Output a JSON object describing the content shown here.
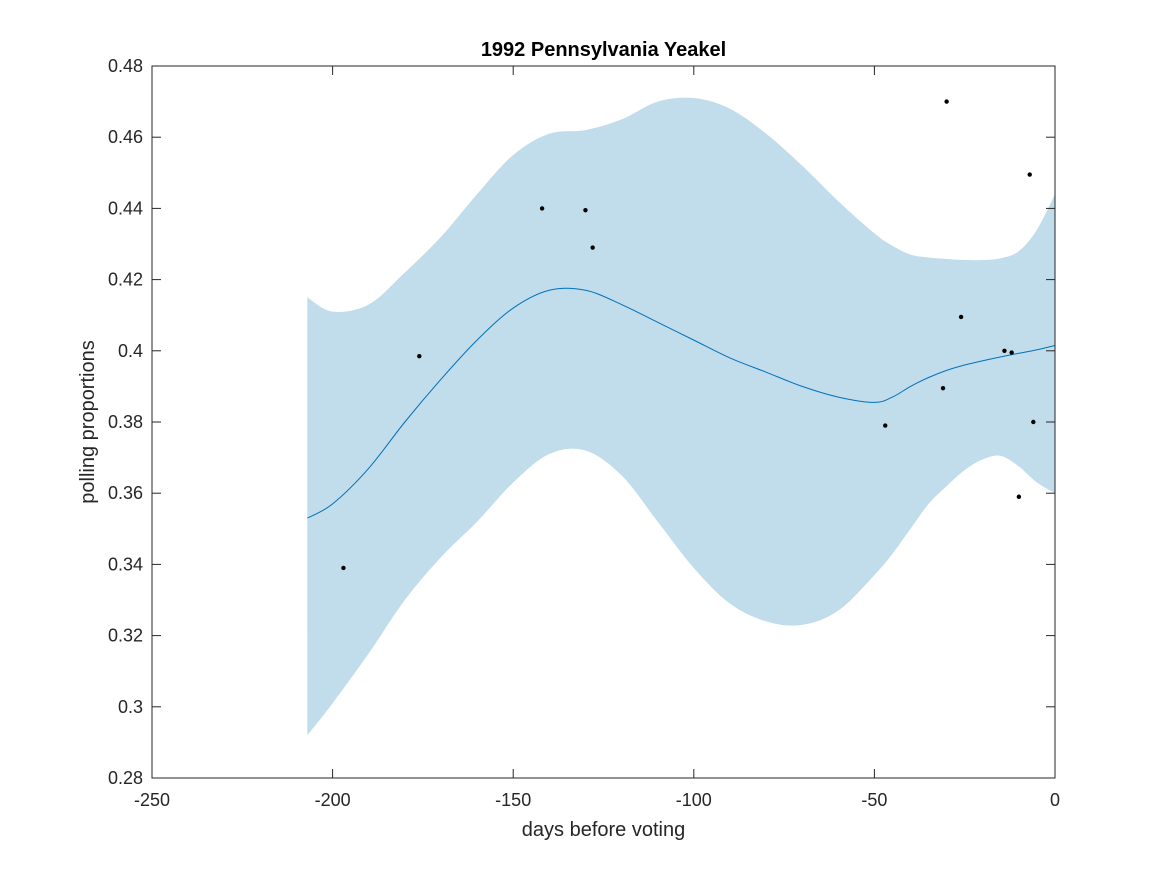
{
  "chart_data": {
    "type": "line",
    "title": "1992 Pennsylvania Yeakel",
    "xlabel": "days before voting",
    "ylabel": "polling proportions",
    "xlim": [
      -250,
      0
    ],
    "ylim": [
      0.28,
      0.48
    ],
    "xticks": [
      -250,
      -200,
      -150,
      -100,
      -50,
      0
    ],
    "xtick_labels": [
      "-250",
      "-200",
      "-150",
      "-100",
      "-50",
      "0"
    ],
    "yticks": [
      0.28,
      0.3,
      0.32,
      0.34,
      0.36,
      0.38,
      0.4,
      0.42,
      0.44,
      0.46,
      0.48
    ],
    "ytick_labels": [
      "0.28",
      "0.3",
      "0.32",
      "0.34",
      "0.36",
      "0.38",
      "0.4",
      "0.42",
      "0.44",
      "0.46",
      "0.48"
    ],
    "grid": false,
    "colors": {
      "band": "#c1dcea",
      "line": "#0072bd",
      "points": "#000000"
    },
    "series": [
      {
        "type": "line",
        "x": [
          -207,
          -200,
          -190,
          -180,
          -170,
          -160,
          -150,
          -140,
          -130,
          -120,
          -110,
          -100,
          -90,
          -80,
          -70,
          -60,
          -50,
          -45,
          -40,
          -35,
          -30,
          -25,
          -20,
          -15,
          -10,
          -5,
          0
        ],
        "values": [
          0.353,
          0.357,
          0.367,
          0.38,
          0.392,
          0.403,
          0.412,
          0.417,
          0.417,
          0.413,
          0.408,
          0.403,
          0.398,
          0.394,
          0.39,
          0.387,
          0.3855,
          0.387,
          0.39,
          0.3925,
          0.3945,
          0.396,
          0.3972,
          0.3983,
          0.3993,
          0.4003,
          0.4015
        ]
      },
      {
        "type": "area",
        "x": [
          -207,
          -200,
          -190,
          -180,
          -170,
          -160,
          -150,
          -140,
          -130,
          -120,
          -110,
          -100,
          -90,
          -80,
          -70,
          -60,
          -50,
          -45,
          -40,
          -35,
          -30,
          -25,
          -20,
          -15,
          -10,
          -5,
          0
        ],
        "upper": [
          0.415,
          0.411,
          0.413,
          0.422,
          0.432,
          0.444,
          0.455,
          0.461,
          0.462,
          0.465,
          0.47,
          0.471,
          0.468,
          0.461,
          0.452,
          0.442,
          0.433,
          0.4295,
          0.427,
          0.4262,
          0.4258,
          0.4255,
          0.4255,
          0.426,
          0.428,
          0.434,
          0.444
        ],
        "lower": [
          0.292,
          0.301,
          0.315,
          0.33,
          0.342,
          0.352,
          0.363,
          0.371,
          0.372,
          0.365,
          0.352,
          0.339,
          0.329,
          0.324,
          0.323,
          0.327,
          0.337,
          0.343,
          0.35,
          0.357,
          0.362,
          0.3665,
          0.3695,
          0.3705,
          0.3675,
          0.363,
          0.36
        ]
      },
      {
        "type": "scatter",
        "points": [
          [
            -197,
            0.339
          ],
          [
            -176,
            0.3985
          ],
          [
            -142,
            0.44
          ],
          [
            -130,
            0.4395
          ],
          [
            -128,
            0.429
          ],
          [
            -47,
            0.379
          ],
          [
            -31,
            0.3895
          ],
          [
            -30,
            0.47
          ],
          [
            -26,
            0.4095
          ],
          [
            -14,
            0.4
          ],
          [
            -12,
            0.3995
          ],
          [
            -10,
            0.359
          ],
          [
            -7,
            0.4495
          ],
          [
            -6,
            0.38
          ]
        ]
      }
    ]
  }
}
